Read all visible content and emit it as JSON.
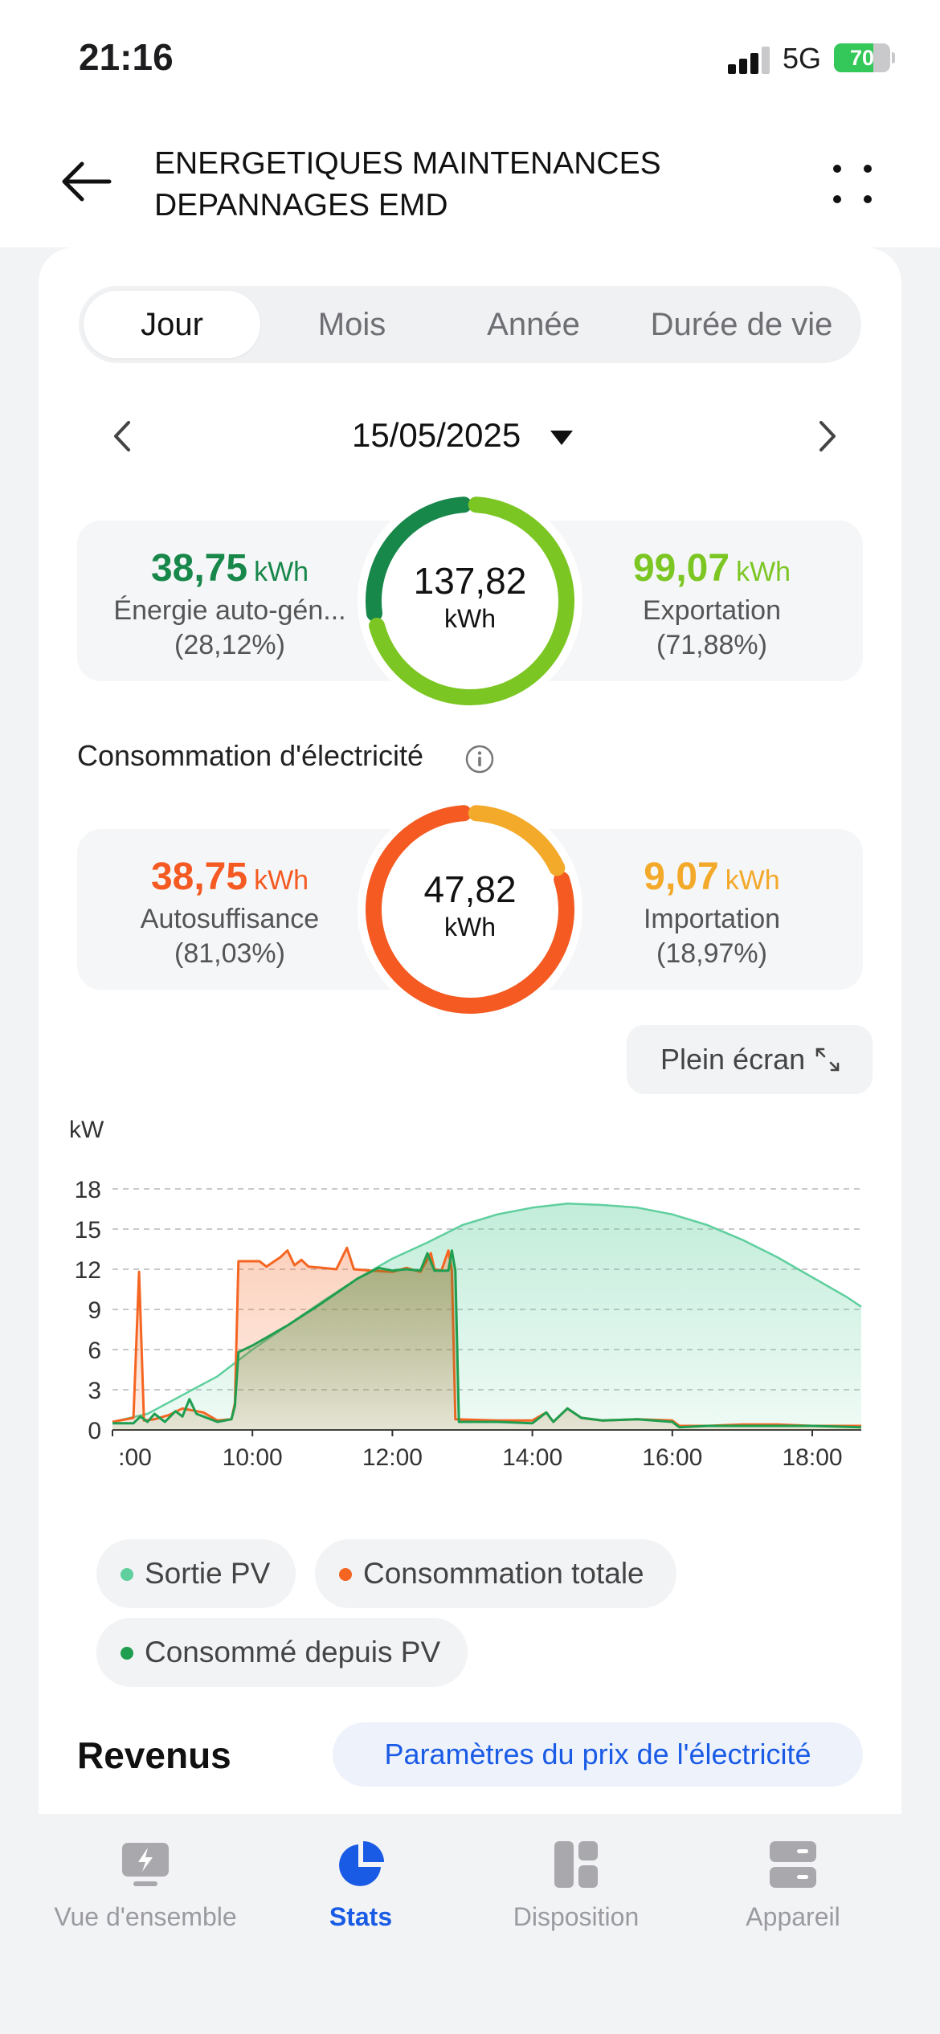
{
  "status_bar": {
    "time": "21:16",
    "network": "5G",
    "battery": "70"
  },
  "header": {
    "title_line1": "ENERGETIQUES MAINTENANCES",
    "title_line2": "DEPANNAGES EMD"
  },
  "tabs": [
    {
      "label": "Jour",
      "active": true
    },
    {
      "label": "Mois",
      "active": false
    },
    {
      "label": "Année",
      "active": false
    },
    {
      "label": "Durée de vie",
      "active": false
    }
  ],
  "date": "15/05/2025",
  "production": {
    "left": {
      "value": "38,75",
      "unit": "kWh",
      "label": "Énergie auto-gén...",
      "percent": "(28,12%)",
      "color": "#17874a"
    },
    "center": {
      "value": "137,82",
      "unit": "kWh"
    },
    "right": {
      "value": "99,07",
      "unit": "kWh",
      "label": "Exportation",
      "percent": "(71,88%)",
      "color": "#7cc623"
    },
    "share": 0.2812
  },
  "consumption": {
    "section_title": "Consommation d'électricité",
    "left": {
      "value": "38,75",
      "unit": "kWh",
      "label": "Autosuffisance",
      "percent": "(81,03%)",
      "color": "#f45a21"
    },
    "center": {
      "value": "47,82",
      "unit": "kWh"
    },
    "right": {
      "value": "9,07",
      "unit": "kWh",
      "label": "Importation",
      "percent": "(18,97%)",
      "color": "#f3a92a"
    },
    "share": 0.8103
  },
  "fullscreen_label": "Plein écran",
  "chart_data": {
    "type": "area",
    "ylabel": "kW",
    "ylim": [
      0,
      18
    ],
    "yticks": [
      0,
      3,
      6,
      9,
      12,
      15,
      18
    ],
    "xlim": [
      8.0,
      18.7
    ],
    "xticks": [
      8,
      10,
      12,
      14,
      16,
      18
    ],
    "xtick_labels": [
      ":00",
      "10:00",
      "12:00",
      "14:00",
      "16:00",
      "18:00"
    ],
    "grid": true,
    "series": [
      {
        "name": "Sortie PV",
        "color": "#5fcf9e",
        "points": [
          [
            8.0,
            0.6
          ],
          [
            8.5,
            1.2
          ],
          [
            9.0,
            2.6
          ],
          [
            9.5,
            4.0
          ],
          [
            10.0,
            6.0
          ],
          [
            10.5,
            7.8
          ],
          [
            11.0,
            9.6
          ],
          [
            11.5,
            11.3
          ],
          [
            12.0,
            12.8
          ],
          [
            12.5,
            14.0
          ],
          [
            13.0,
            15.3
          ],
          [
            13.5,
            16.1
          ],
          [
            14.0,
            16.6
          ],
          [
            14.5,
            16.9
          ],
          [
            15.0,
            16.8
          ],
          [
            15.5,
            16.6
          ],
          [
            16.0,
            16.1
          ],
          [
            16.5,
            15.3
          ],
          [
            17.0,
            14.2
          ],
          [
            17.5,
            12.9
          ],
          [
            18.0,
            11.4
          ],
          [
            18.5,
            9.9
          ],
          [
            18.7,
            9.2
          ]
        ]
      },
      {
        "name": "Consommation totale",
        "color": "#f56522",
        "points": [
          [
            8.0,
            0.6
          ],
          [
            8.3,
            0.9
          ],
          [
            8.38,
            11.8
          ],
          [
            8.45,
            0.7
          ],
          [
            8.6,
            0.8
          ],
          [
            8.8,
            1.1
          ],
          [
            9.0,
            1.6
          ],
          [
            9.3,
            1.3
          ],
          [
            9.5,
            0.7
          ],
          [
            9.7,
            0.8
          ],
          [
            9.75,
            2.0
          ],
          [
            9.8,
            12.6
          ],
          [
            10.1,
            12.6
          ],
          [
            10.2,
            12.2
          ],
          [
            10.4,
            12.9
          ],
          [
            10.5,
            13.4
          ],
          [
            10.6,
            12.3
          ],
          [
            10.7,
            12.7
          ],
          [
            10.8,
            12.2
          ],
          [
            11.0,
            12.1
          ],
          [
            11.2,
            12.0
          ],
          [
            11.35,
            13.6
          ],
          [
            11.45,
            12.0
          ],
          [
            11.7,
            11.9
          ],
          [
            12.0,
            11.8
          ],
          [
            12.2,
            12.1
          ],
          [
            12.4,
            11.8
          ],
          [
            12.55,
            13.2
          ],
          [
            12.6,
            12.0
          ],
          [
            12.7,
            11.9
          ],
          [
            12.8,
            13.4
          ],
          [
            12.85,
            11.9
          ],
          [
            12.9,
            0.8
          ],
          [
            13.5,
            0.7
          ],
          [
            14.0,
            0.7
          ],
          [
            14.2,
            1.3
          ],
          [
            14.3,
            0.6
          ],
          [
            14.5,
            1.6
          ],
          [
            14.7,
            0.9
          ],
          [
            15.0,
            0.7
          ],
          [
            15.5,
            0.8
          ],
          [
            16.0,
            0.7
          ],
          [
            16.1,
            0.3
          ],
          [
            16.5,
            0.3
          ],
          [
            17.0,
            0.4
          ],
          [
            17.5,
            0.4
          ],
          [
            18.0,
            0.3
          ],
          [
            18.7,
            0.3
          ]
        ]
      },
      {
        "name": "Consommé depuis PV",
        "color": "#1f9e4f",
        "points": [
          [
            8.0,
            0.5
          ],
          [
            8.3,
            0.5
          ],
          [
            8.4,
            1.0
          ],
          [
            8.5,
            0.6
          ],
          [
            8.6,
            1.2
          ],
          [
            8.75,
            0.6
          ],
          [
            8.9,
            1.4
          ],
          [
            9.0,
            1.0
          ],
          [
            9.1,
            2.3
          ],
          [
            9.2,
            1.2
          ],
          [
            9.5,
            0.6
          ],
          [
            9.7,
            0.8
          ],
          [
            9.75,
            1.8
          ],
          [
            9.8,
            5.8
          ],
          [
            10.0,
            6.3
          ],
          [
            10.5,
            7.8
          ],
          [
            11.0,
            9.5
          ],
          [
            11.5,
            11.3
          ],
          [
            11.8,
            12.1
          ],
          [
            12.0,
            11.9
          ],
          [
            12.2,
            12.0
          ],
          [
            12.4,
            11.9
          ],
          [
            12.5,
            13.2
          ],
          [
            12.6,
            11.9
          ],
          [
            12.8,
            11.9
          ],
          [
            12.85,
            13.4
          ],
          [
            12.9,
            11.9
          ],
          [
            12.95,
            0.6
          ],
          [
            13.5,
            0.6
          ],
          [
            14.0,
            0.5
          ],
          [
            14.2,
            1.3
          ],
          [
            14.3,
            0.6
          ],
          [
            14.5,
            1.6
          ],
          [
            14.7,
            0.9
          ],
          [
            15.0,
            0.7
          ],
          [
            15.5,
            0.8
          ],
          [
            16.0,
            0.6
          ],
          [
            16.1,
            0.2
          ],
          [
            16.5,
            0.3
          ],
          [
            17.0,
            0.3
          ],
          [
            17.5,
            0.3
          ],
          [
            18.0,
            0.3
          ],
          [
            18.7,
            0.2
          ]
        ]
      }
    ]
  },
  "legend": [
    {
      "label": "Sortie PV",
      "color": "#5fcf9e"
    },
    {
      "label": "Consommation totale",
      "color": "#f56522"
    },
    {
      "label": "Consommé depuis PV",
      "color": "#1f9e4f"
    }
  ],
  "revenus": {
    "title": "Revenus",
    "price_button": "Paramètres du prix de l'électricité"
  },
  "bottom_nav": [
    {
      "label": "Vue d'ensemble",
      "icon": "overview-icon",
      "active": false
    },
    {
      "label": "Stats",
      "icon": "pie-chart-icon",
      "active": true
    },
    {
      "label": "Disposition",
      "icon": "layout-icon",
      "active": false
    },
    {
      "label": "Appareil",
      "icon": "device-icon",
      "active": false
    }
  ]
}
